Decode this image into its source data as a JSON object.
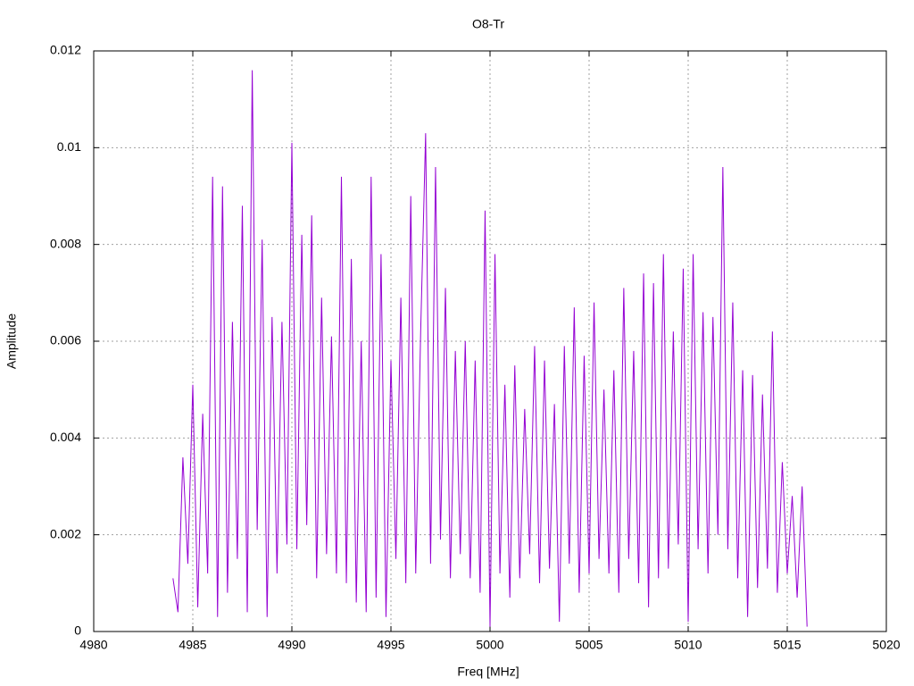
{
  "chart_data": {
    "type": "line",
    "title": "O8-Tr",
    "x_label": "Freq [MHz]",
    "y_label": "Amplitude",
    "xlim": [
      4980,
      5020
    ],
    "xticks": [
      4980,
      4985,
      4990,
      4995,
      5000,
      5005,
      5010,
      5015,
      5020
    ],
    "ylim": [
      0,
      0.012
    ],
    "yticks": [
      0,
      0.002,
      0.004,
      0.006,
      0.008,
      0.01,
      0.012
    ],
    "grid": true,
    "x": [
      4984,
      4984.25,
      4984.5,
      4984.75,
      4985,
      4985.25,
      4985.5,
      4985.75,
      4986,
      4986.25,
      4986.5,
      4986.75,
      4987,
      4987.25,
      4987.5,
      4987.75,
      4988,
      4988.25,
      4988.5,
      4988.75,
      4989,
      4989.25,
      4989.5,
      4989.75,
      4990,
      4990.25,
      4990.5,
      4990.75,
      4991,
      4991.25,
      4991.5,
      4991.75,
      4992,
      4992.25,
      4992.5,
      4992.75,
      4993,
      4993.25,
      4993.5,
      4993.75,
      4994,
      4994.25,
      4994.5,
      4994.75,
      4995,
      4995.25,
      4995.5,
      4995.75,
      4996,
      4996.25,
      4996.5,
      4996.75,
      4997,
      4997.25,
      4997.5,
      4997.75,
      4998,
      4998.25,
      4998.5,
      4998.75,
      4999,
      4999.25,
      4999.5,
      4999.75,
      5000,
      5000.25,
      5000.5,
      5000.75,
      5001,
      5001.25,
      5001.5,
      5001.75,
      5002,
      5002.25,
      5002.5,
      5002.75,
      5003,
      5003.25,
      5003.5,
      5003.75,
      5004,
      5004.25,
      5004.5,
      5004.75,
      5005,
      5005.25,
      5005.5,
      5005.75,
      5006,
      5006.25,
      5006.5,
      5006.75,
      5007,
      5007.25,
      5007.5,
      5007.75,
      5008,
      5008.25,
      5008.5,
      5008.75,
      5009,
      5009.25,
      5009.5,
      5009.75,
      5010,
      5010.25,
      5010.5,
      5010.75,
      5011,
      5011.25,
      5011.5,
      5011.75,
      5012,
      5012.25,
      5012.5,
      5012.75,
      5013,
      5013.25,
      5013.5,
      5013.75,
      5014,
      5014.25,
      5014.5,
      5014.75,
      5015,
      5015.25,
      5015.5,
      5015.75,
      5016
    ],
    "series": [
      {
        "color": "#9400d3",
        "values": [
          0.0011,
          0.0004,
          0.0036,
          0.0014,
          0.0051,
          0.0005,
          0.0045,
          0.0012,
          0.0094,
          0.0003,
          0.0092,
          0.0008,
          0.0064,
          0.0015,
          0.0088,
          0.0004,
          0.0116,
          0.0021,
          0.0081,
          0.0003,
          0.0065,
          0.0012,
          0.0064,
          0.0018,
          0.0101,
          0.0017,
          0.0082,
          0.0022,
          0.0086,
          0.0011,
          0.0069,
          0.0016,
          0.0061,
          0.0012,
          0.0094,
          0.001,
          0.0077,
          0.0006,
          0.006,
          0.0004,
          0.0094,
          0.0007,
          0.0078,
          0.0003,
          0.0056,
          0.0015,
          0.0069,
          0.001,
          0.009,
          0.0012,
          0.0062,
          0.0103,
          0.0014,
          0.0096,
          0.0019,
          0.0071,
          0.0011,
          0.0058,
          0.0016,
          0.006,
          0.0011,
          0.0056,
          0.0008,
          0.0087,
          0.0001,
          0.0078,
          0.0012,
          0.0051,
          0.0007,
          0.0055,
          0.0011,
          0.0046,
          0.0016,
          0.0059,
          0.001,
          0.0056,
          0.0013,
          0.0047,
          0.0002,
          0.0059,
          0.0014,
          0.0067,
          0.0008,
          0.0057,
          0.0012,
          0.0068,
          0.0015,
          0.005,
          0.0012,
          0.0054,
          0.0008,
          0.0071,
          0.0015,
          0.0058,
          0.001,
          0.0074,
          0.0005,
          0.0072,
          0.0011,
          0.0078,
          0.0013,
          0.0062,
          0.0018,
          0.0075,
          0.0002,
          0.0078,
          0.0017,
          0.0066,
          0.0012,
          0.0065,
          0.002,
          0.0096,
          0.0017,
          0.0068,
          0.0011,
          0.0054,
          0.0003,
          0.0053,
          0.0009,
          0.0049,
          0.0013,
          0.0062,
          0.0008,
          0.0035,
          0.0012,
          0.0028,
          0.0007,
          0.003,
          0.0001
        ]
      }
    ]
  }
}
